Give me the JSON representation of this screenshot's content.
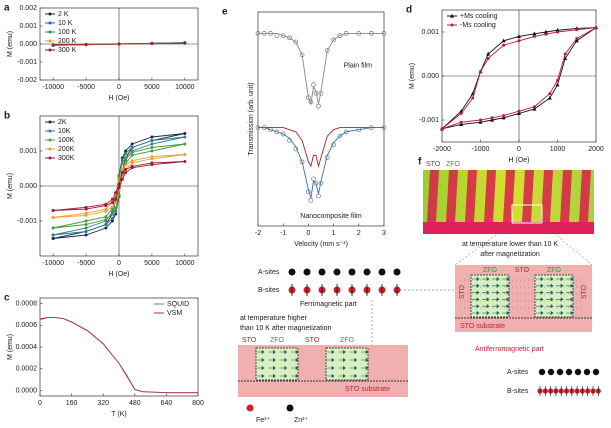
{
  "chart_data": [
    {
      "type": "line",
      "label": "a",
      "xlabel": "H (Oe)",
      "ylabel": "M (emu)",
      "x": [
        -10000,
        -5000,
        0,
        5000,
        10000
      ],
      "series": [
        {
          "name": "2 K",
          "color": "#222222",
          "marker": "circle",
          "values": [
            -8e-05,
            -4e-05,
            0,
            4e-05,
            8e-05
          ]
        },
        {
          "name": "10 K",
          "color": "#1f5fbf",
          "marker": "circle",
          "values": [
            -7e-05,
            -3.5e-05,
            0,
            3.5e-05,
            7e-05
          ]
        },
        {
          "name": "100 K",
          "color": "#2e8b57",
          "marker": "circle",
          "values": [
            -6e-05,
            -3e-05,
            0,
            3e-05,
            6e-05
          ]
        },
        {
          "name": "200 K",
          "color": "#e8a020",
          "marker": "circle",
          "values": [
            -5e-05,
            -2.5e-05,
            0,
            2.5e-05,
            5e-05
          ]
        },
        {
          "name": "300 K",
          "color": "#9b1b30",
          "marker": "circle",
          "values": [
            -4e-05,
            -2e-05,
            0,
            2e-05,
            4e-05
          ]
        }
      ],
      "xlim": [
        -12000,
        12000
      ],
      "xticks": [
        -10000,
        -5000,
        0,
        5000,
        10000
      ],
      "ylim": [
        -0.002,
        0.002
      ],
      "yticks": [
        -0.002,
        -0.001,
        {
          "value": 0,
          "label": "0.000"
        },
        0.001,
        0.002
      ],
      "zero_lines": true,
      "legend": "upper left"
    },
    {
      "type": "line",
      "label": "b",
      "xlabel": "H (Oe)",
      "ylabel": "M (emu)",
      "x": [
        -10000,
        -5000,
        -2000,
        -1000,
        -500,
        0,
        500,
        1000,
        2000,
        5000,
        10000,
        5000,
        2000,
        1000,
        500,
        0,
        -500,
        -1000,
        -2000,
        -5000,
        -10000
      ],
      "series": [
        {
          "name": "2K",
          "color": "#1b2a4a",
          "marker": "circle",
          "values": [
            -0.0015,
            -0.0014,
            -0.0012,
            -0.001,
            -0.0008,
            -0.0003,
            0.0004,
            0.0008,
            0.0011,
            0.0013,
            0.0015,
            0.0014,
            0.0012,
            0.001,
            0.0008,
            0.0003,
            -0.0004,
            -0.0008,
            -0.0011,
            -0.0013,
            -0.0015
          ]
        },
        {
          "name": "10K",
          "color": "#2a7f8f",
          "marker": "circle",
          "values": [
            -0.0014,
            -0.0013,
            -0.0011,
            -0.00093,
            -0.00074,
            -0.00028,
            0.00037,
            0.00074,
            0.001,
            0.0012,
            0.0014,
            0.0013,
            0.0011,
            0.00093,
            0.00074,
            0.00028,
            -0.00037,
            -0.00074,
            -0.001,
            -0.0012,
            -0.0014
          ]
        },
        {
          "name": "100K",
          "color": "#4a9a3a",
          "marker": "circle",
          "values": [
            -0.0012,
            -0.0011,
            -0.00096,
            -0.0008,
            -0.00064,
            -0.00024,
            0.00032,
            0.00064,
            0.00088,
            0.001,
            0.0012,
            0.0011,
            0.00096,
            0.0008,
            0.00064,
            0.00024,
            -0.00032,
            -0.00064,
            -0.00088,
            -0.001,
            -0.0012
          ]
        },
        {
          "name": "200K",
          "color": "#f0a030",
          "marker": "circle",
          "values": [
            -0.0009,
            -0.00084,
            -0.00072,
            -0.0006,
            -0.00048,
            -0.00012,
            0.00024,
            0.00048,
            0.00066,
            0.00078,
            0.0009,
            0.00084,
            0.00072,
            0.0006,
            0.00048,
            0.00012,
            -0.00024,
            -0.00048,
            -0.00066,
            -0.00078,
            -0.0009
          ]
        },
        {
          "name": "300K",
          "color": "#a0183a",
          "marker": "circle",
          "values": [
            -0.0007,
            -0.00066,
            -0.00056,
            -0.00047,
            -0.00038,
            -5e-05,
            0.00019,
            0.00038,
            0.00052,
            0.00061,
            0.0007,
            0.00066,
            0.00056,
            0.00047,
            0.00038,
            5e-05,
            -0.00019,
            -0.00038,
            -0.00052,
            -0.00061,
            -0.0007
          ]
        }
      ],
      "xlim": [
        -12000,
        12000
      ],
      "xticks": [
        -10000,
        -5000,
        0,
        5000,
        10000
      ],
      "ylim": [
        -0.002,
        0.002
      ],
      "yticks": [
        -0.001,
        {
          "value": 0,
          "label": "0.000"
        },
        0.001
      ],
      "zero_lines": true,
      "legend": "upper left"
    },
    {
      "type": "line",
      "label": "c",
      "xlabel": "T (K)",
      "ylabel": "M (emu)",
      "x": [
        0,
        40,
        80,
        120,
        160,
        240,
        320,
        400,
        440,
        480,
        520,
        640,
        800
      ],
      "series": [
        {
          "name": "SQUID",
          "color": "#7a7a9a",
          "values": [
            0.00065,
            0.00067,
            0.00067,
            0.00066,
            0.00063,
            0.00055,
            0.00043,
            0.00025,
            0.00014,
            1e-05,
            -1e-05,
            -2e-05,
            -2e-05
          ]
        },
        {
          "name": "VSM",
          "color": "#b03050",
          "values": [
            0.00066,
            0.00067,
            0.00067,
            0.00066,
            0.00063,
            0.00055,
            0.00043,
            0.00025,
            0.00013,
            1e-05,
            -1e-05,
            -2e-05,
            -2e-05
          ]
        }
      ],
      "xlim": [
        0,
        800
      ],
      "xticks": [
        0,
        160,
        320,
        480,
        640,
        800
      ],
      "ylim": [
        -5e-05,
        0.00085
      ],
      "yticks": [
        {
          "value": 0,
          "label": "0.0000"
        },
        0.0002,
        0.0004,
        0.0006,
        0.0008
      ],
      "zero_lines": false,
      "legend": "upper right"
    },
    {
      "type": "line",
      "label": "d",
      "xlabel": "H (Oe)",
      "ylabel": "M (emu)",
      "x": [
        -2000,
        -1500,
        -1000,
        -700,
        -400,
        0,
        400,
        800,
        1000,
        1200,
        1500,
        2000,
        1500,
        1000,
        700,
        400,
        0,
        -400,
        -800,
        -1000,
        -1200,
        -1500,
        -2000
      ],
      "series": [
        {
          "name": "+Ms cooling",
          "color": "#111111",
          "marker": "triangle",
          "values": [
            -0.0012,
            -0.0011,
            -0.00105,
            -0.001,
            -0.00095,
            -0.00085,
            -0.00075,
            -0.0005,
            -0.0002,
            0.0004,
            0.0008,
            0.0011,
            0.00108,
            0.00104,
            0.001,
            0.00096,
            0.0009,
            0.0008,
            0.0005,
            0.0001,
            -0.0004,
            -0.0008,
            -0.0012
          ]
        },
        {
          "name": "-Ms cooling",
          "color": "#b0203a",
          "marker": "circle",
          "values": [
            -0.0012,
            -0.00105,
            -0.001,
            -0.00095,
            -0.0009,
            -0.0008,
            -0.0007,
            -0.0004,
            -0.0001,
            0.0005,
            0.00085,
            0.0011,
            0.00105,
            0.001,
            0.00095,
            0.0009,
            0.0008,
            0.0007,
            0.0004,
            0.0001,
            -0.0005,
            -0.00085,
            -0.0012
          ]
        }
      ],
      "xlim": [
        -2000,
        2000
      ],
      "xticks": [
        -2000,
        -1000,
        0,
        1000,
        2000
      ],
      "ylim": [
        -0.0015,
        0.0015
      ],
      "yticks": [
        -0.001,
        {
          "value": 0,
          "label": "0.000"
        },
        0.001
      ],
      "zero_lines": true,
      "legend": "upper left"
    },
    {
      "type": "line",
      "label": "e",
      "xlabel": "Velocity (mm s⁻¹)",
      "ylabel": "Transmission (arb. unit)",
      "annotations": [
        "Plain film",
        "Nanocomposite film"
      ],
      "x": [
        -2,
        -1.75,
        -1.5,
        -1.25,
        -1,
        -0.75,
        -0.5,
        -0.25,
        0,
        0.1,
        0.2,
        0.3,
        0.4,
        0.5,
        0.75,
        1,
        1.25,
        1.5,
        2,
        2.5,
        3
      ],
      "series": [
        {
          "color": "#777777",
          "marker": "open-circle",
          "line": false,
          "values": [
            0.9,
            0.9,
            0.9,
            0.89,
            0.89,
            0.88,
            0.86,
            0.8,
            0.6,
            0.58,
            0.66,
            0.62,
            0.56,
            0.62,
            0.82,
            0.87,
            0.89,
            0.9,
            0.9,
            0.9,
            0.9
          ]
        },
        {
          "color": "#888888",
          "values": [
            0.9,
            0.9,
            0.9,
            0.9,
            0.89,
            0.88,
            0.86,
            0.8,
            0.6,
            0.57,
            0.65,
            0.63,
            0.57,
            0.63,
            0.82,
            0.87,
            0.89,
            0.9,
            0.9,
            0.9,
            0.9
          ]
        },
        {
          "color": "#777777",
          "marker": "open-circle",
          "line": false,
          "values": [
            0.46,
            0.46,
            0.45,
            0.44,
            0.43,
            0.4,
            0.36,
            0.3,
            0.16,
            0.12,
            0.22,
            0.2,
            0.14,
            0.2,
            0.32,
            0.38,
            0.42,
            0.44,
            0.45,
            0.46,
            0.46
          ]
        },
        {
          "color": "#b01c2e",
          "values": [
            0.46,
            0.46,
            0.46,
            0.46,
            0.46,
            0.45,
            0.44,
            0.4,
            0.3,
            0.28,
            0.33,
            0.33,
            0.28,
            0.32,
            0.42,
            0.45,
            0.46,
            0.46,
            0.46,
            0.46,
            0.46
          ]
        },
        {
          "color": "#3a6fb0",
          "values": [
            0.46,
            0.46,
            0.45,
            0.44,
            0.43,
            0.41,
            0.37,
            0.3,
            0.17,
            0.13,
            0.21,
            0.2,
            0.15,
            0.21,
            0.33,
            0.39,
            0.42,
            0.44,
            0.45,
            0.46,
            0.46
          ]
        }
      ],
      "xlim": [
        -2,
        3
      ],
      "xticks": [
        -2,
        -1,
        0,
        1,
        2,
        3
      ],
      "ylim": [
        0,
        1
      ],
      "zero_lines": false
    }
  ],
  "diagram": {
    "label": "f",
    "micrograph_labels": [
      "STO",
      "ZFO"
    ],
    "low_temp_caption": [
      "at temperature lower than 10 K",
      "after magnetization"
    ],
    "high_temp_caption": [
      "at temperature higher",
      "than 10 K after magnetization"
    ],
    "ferrimagnetic": {
      "sites": [
        "A-sites",
        "B-sites"
      ],
      "caption": "Ferrimagnetic part"
    },
    "antiferromagnetic": {
      "sites": [
        "A-sites",
        "B-sites"
      ],
      "caption": "Antiferromagnetic part"
    },
    "low_temp_layers": [
      "STO",
      "ZFO",
      "STO",
      "ZFO",
      "STO"
    ],
    "low_temp_substrate": "STO substrate",
    "high_temp_layers": [
      "STO",
      "ZFO",
      "STO",
      "ZFO"
    ],
    "high_temp_substrate": "STO substrate",
    "ions": [
      "Fe³⁺",
      "Zn²⁺"
    ]
  }
}
